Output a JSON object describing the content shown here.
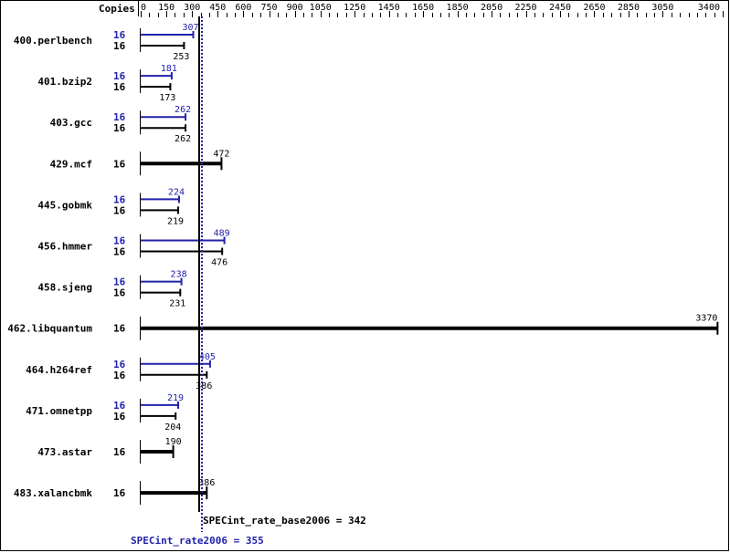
{
  "chart_data": {
    "type": "bar",
    "orientation": "horizontal",
    "axis_label": "Copies",
    "xlim": [
      0,
      3400
    ],
    "tick_labels": [
      0,
      150,
      300,
      450,
      600,
      750,
      900,
      1050,
      1250,
      1450,
      1650,
      1850,
      2050,
      2250,
      2450,
      2650,
      2850,
      3050,
      3400
    ],
    "benchmarks": [
      {
        "name": "400.perlbench",
        "peak_copies": "16",
        "peak": 307,
        "base_copies": "16",
        "base": 253
      },
      {
        "name": "401.bzip2",
        "peak_copies": "16",
        "peak": 181,
        "base_copies": "16",
        "base": 173
      },
      {
        "name": "403.gcc",
        "peak_copies": "16",
        "peak": 262,
        "base_copies": "16",
        "base": 262
      },
      {
        "name": "429.mcf",
        "base_copies": "16",
        "base": 472
      },
      {
        "name": "445.gobmk",
        "peak_copies": "16",
        "peak": 224,
        "base_copies": "16",
        "base": 219
      },
      {
        "name": "456.hmmer",
        "peak_copies": "16",
        "peak": 489,
        "base_copies": "16",
        "base": 476
      },
      {
        "name": "458.sjeng",
        "peak_copies": "16",
        "peak": 238,
        "base_copies": "16",
        "base": 231
      },
      {
        "name": "462.libquantum",
        "base_copies": "16",
        "base": 3370
      },
      {
        "name": "464.h264ref",
        "peak_copies": "16",
        "peak": 405,
        "base_copies": "16",
        "base": 386
      },
      {
        "name": "471.omnetpp",
        "peak_copies": "16",
        "peak": 219,
        "base_copies": "16",
        "base": 204
      },
      {
        "name": "473.astar",
        "base_copies": "16",
        "base": 190
      },
      {
        "name": "483.xalancbmk",
        "base_copies": "16",
        "base": 386
      }
    ],
    "base_metric": {
      "label": "SPECint_rate_base2006 = 342",
      "value": 342
    },
    "peak_metric": {
      "label": "SPECint_rate2006 = 355",
      "value": 355
    },
    "colors": {
      "base": "#000000",
      "peak": "#2222aa"
    }
  }
}
